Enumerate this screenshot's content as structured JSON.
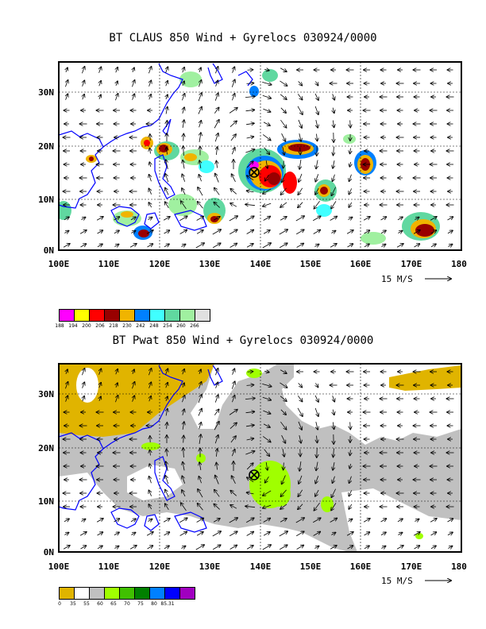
{
  "panel1": {
    "title": "BT CLAUS 850 Wind + Gyrelocs 030924/0000",
    "lat_labels": [
      "30N",
      "20N",
      "10N",
      "0N"
    ],
    "lon_labels": [
      "100E",
      "110E",
      "120E",
      "130E",
      "140E",
      "150E",
      "160E",
      "170E",
      "180"
    ],
    "scale_label": "15 M/S",
    "legend": {
      "colors": [
        "#ff00ff",
        "#ffff00",
        "#ff0000",
        "#990000",
        "#f0b400",
        "#0080ff",
        "#40ffff",
        "#60d8a0",
        "#a0f0a0",
        "#e0e0e0"
      ],
      "labels": [
        "188",
        "194",
        "200",
        "206",
        "218",
        "230",
        "242",
        "248",
        "254",
        "260",
        "266"
      ]
    }
  },
  "panel2": {
    "title": "BT Pwat 850 Wind + Gyrelocs 030924/0000",
    "lat_labels": [
      "30N",
      "20N",
      "10N",
      "0N"
    ],
    "lon_labels": [
      "100E",
      "110E",
      "120E",
      "130E",
      "140E",
      "150E",
      "160E",
      "170E",
      "180"
    ],
    "scale_label": "15 M/S",
    "legend": {
      "colors": [
        "#e0b400",
        "#ffffff",
        "#c0c0c0",
        "#a0ff00",
        "#40c000",
        "#008000",
        "#0080ff",
        "#0000ff",
        "#a000c0"
      ],
      "labels": [
        "0",
        "35",
        "55",
        "60",
        "65",
        "70",
        "75",
        "80",
        "85.31"
      ]
    }
  },
  "gyre_marker": {
    "lon": 139,
    "lat": 14.8,
    "icon": "gyre-center-icon"
  },
  "map": {
    "lon_range": [
      100,
      180
    ],
    "lat_range": [
      0,
      35
    ]
  }
}
